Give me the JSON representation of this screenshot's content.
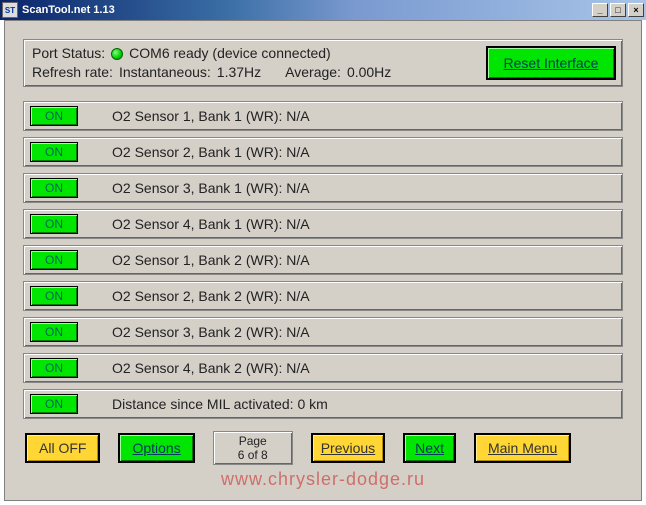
{
  "window": {
    "title": "ScanTool.net 1.13"
  },
  "status": {
    "port_label": "Port Status:",
    "port_text": "COM6 ready (device connected)",
    "refresh_label": "Refresh rate:",
    "inst_label": "Instantaneous:",
    "inst_value": "1.37Hz",
    "avg_label": "Average:",
    "avg_value": "0.00Hz",
    "reset_label": "Reset Interface",
    "led_color": "#00cc00"
  },
  "sensors": [
    {
      "btn": "ON",
      "label": "O2 Sensor 1, Bank 1 (WR): N/A"
    },
    {
      "btn": "ON",
      "label": "O2 Sensor 2, Bank 1 (WR): N/A"
    },
    {
      "btn": "ON",
      "label": "O2 Sensor 3, Bank 1 (WR): N/A"
    },
    {
      "btn": "ON",
      "label": "O2 Sensor 4, Bank 1 (WR): N/A"
    },
    {
      "btn": "ON",
      "label": "O2 Sensor 1, Bank 2 (WR): N/A"
    },
    {
      "btn": "ON",
      "label": "O2 Sensor 2, Bank 2 (WR): N/A"
    },
    {
      "btn": "ON",
      "label": "O2 Sensor 3, Bank 2 (WR): N/A"
    },
    {
      "btn": "ON",
      "label": "O2 Sensor 4, Bank 2 (WR): N/A"
    },
    {
      "btn": "ON",
      "label": "Distance since MIL activated: 0 km"
    }
  ],
  "footer": {
    "all_off": "All OFF",
    "options": "Options",
    "page_label": "Page",
    "page_value": "6 of 8",
    "previous": "Previous",
    "next": "Next",
    "main_menu": "Main Menu"
  },
  "watermark": "www.chrysler-dodge.ru",
  "colors": {
    "green_btn": "#00e600",
    "yellow_btn": "#ffd633",
    "panel_bg": "#d4d0c8"
  }
}
